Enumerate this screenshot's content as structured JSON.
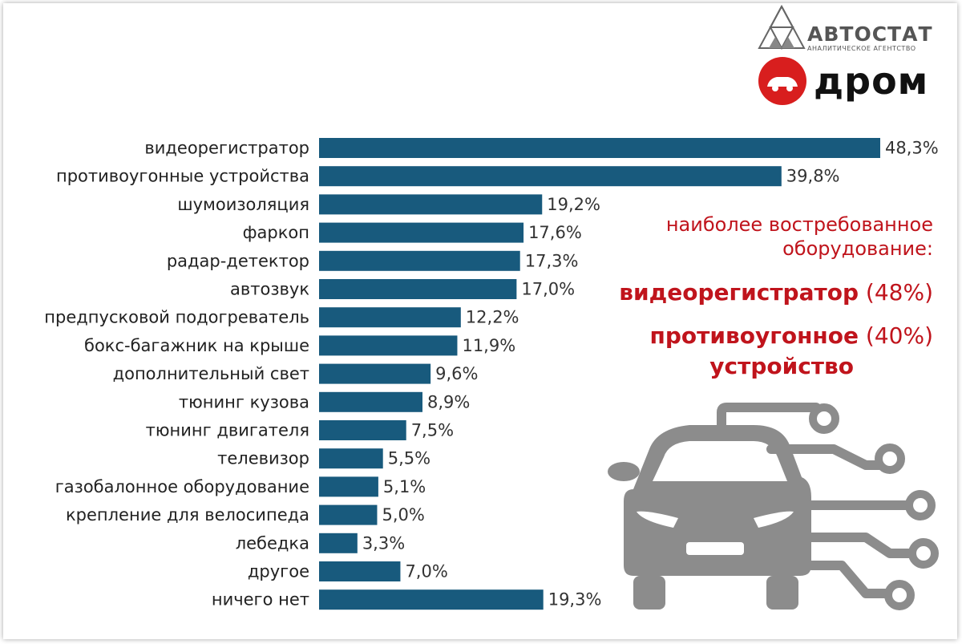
{
  "chart_data": {
    "type": "bar",
    "orientation": "horizontal",
    "categories": [
      "видеорегистратор",
      "противоугонные устройства",
      "шумоизоляция",
      "фаркоп",
      "радар-детектор",
      "автозвук",
      "предпусковой подогреватель",
      "бокс-багажник на крыше",
      "дополнительный свет",
      "тюнинг кузова",
      "тюнинг двигателя",
      "телевизор",
      "газобалонное оборудование",
      "крепление для велосипеда",
      "лебедка",
      "другое",
      "ничего нет"
    ],
    "values": [
      48.3,
      39.8,
      19.2,
      17.6,
      17.3,
      17.0,
      12.2,
      11.9,
      9.6,
      8.9,
      7.5,
      5.5,
      5.1,
      5.0,
      3.3,
      7.0,
      19.3
    ],
    "value_labels": [
      "48,3%",
      "39,8%",
      "19,2%",
      "17,6%",
      "17,3%",
      "17,0%",
      "12,2%",
      "11,9%",
      "9,6%",
      "8,9%",
      "7,5%",
      "5,5%",
      "5,1%",
      "5,0%",
      "3,3%",
      "7,0%",
      "19,3%"
    ],
    "xlim": [
      0,
      48.3
    ],
    "bar_color": "#185a7d",
    "grid": false,
    "legend": "none"
  },
  "annotation": {
    "line1": "наиболее востребованное",
    "line2": "оборудование:",
    "item1_name": "видеорегистратор",
    "item1_pct": "(48%)",
    "item2_name_a": "противоугонное",
    "item2_pct": "(40%)",
    "item2_name_b": "устройство",
    "color": "#c0141c"
  },
  "logos": {
    "avtostat_name": "АВТОСТАТ",
    "avtostat_sub": "АНАЛИТИЧЕСКОЕ АГЕНТСТВО",
    "drom_name": "дром",
    "drom_color": "#d81e1e"
  },
  "icons": {
    "illustration": "car-circuit-icon",
    "drom_logo": "drom-car-logo-icon",
    "avtostat_logo": "triangle-logo-icon"
  }
}
